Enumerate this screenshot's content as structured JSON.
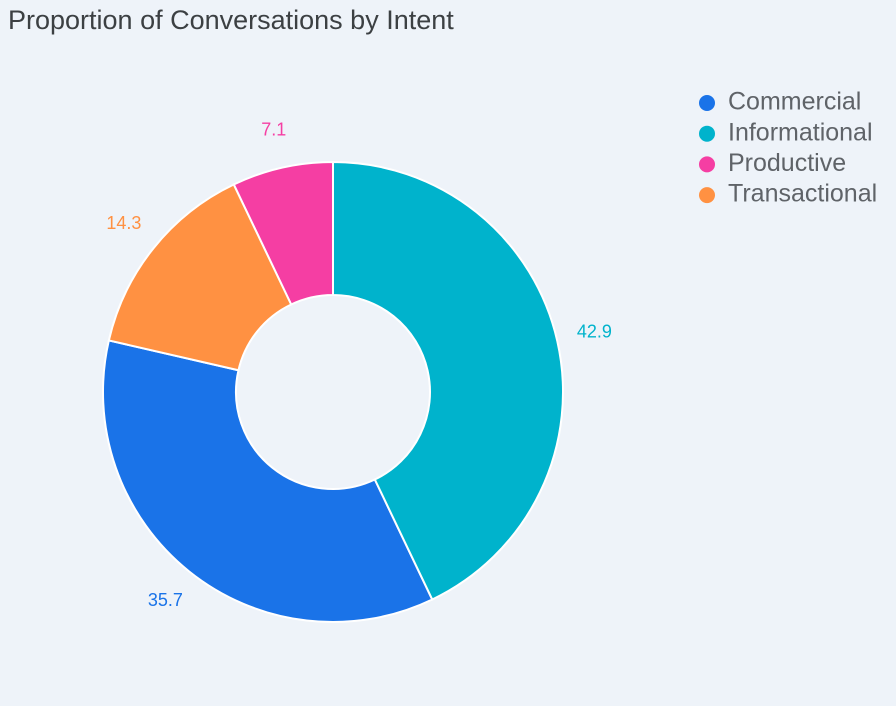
{
  "chart_data": {
    "type": "donut",
    "title": "Proportion of Conversations by Intent",
    "categories": [
      "Commercial",
      "Informational",
      "Productive",
      "Transactional"
    ],
    "values": [
      35.7,
      42.9,
      7.1,
      14.3
    ],
    "colors": [
      "#1a73e8",
      "#00b3cc",
      "#f53ea3",
      "#ff9142"
    ],
    "legend": "top-right"
  }
}
